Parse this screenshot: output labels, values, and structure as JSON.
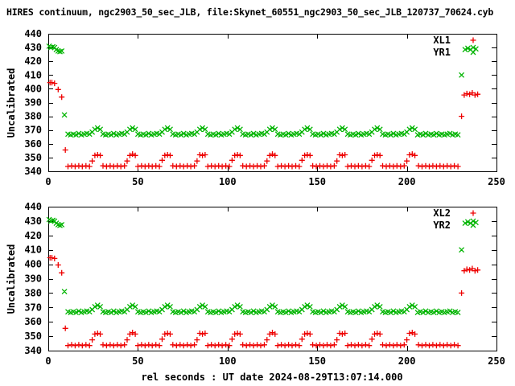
{
  "window": {
    "background": "#ffffff",
    "text_color": "#000000"
  },
  "chart_data": {
    "type": "scatter",
    "title": "HIRES continuum, ngc2903_50_sec_JLB, file:Skynet_60551_ngc2903_50_sec_JLB_120737_70624.cyb",
    "xlabel": "rel seconds : UT date 2024-08-29T13:07:14.000",
    "ylabel": "Uncalibrated",
    "xlim": [
      0,
      250
    ],
    "ylim": [
      340,
      440
    ],
    "xticks": [
      0,
      50,
      100,
      150,
      200,
      250
    ],
    "yticks": [
      340,
      350,
      360,
      370,
      380,
      390,
      400,
      410,
      420,
      430,
      440
    ],
    "grid": false,
    "legend_position": "top-right-inside",
    "frame_color": "#000000",
    "panels": [
      {
        "name": "top",
        "series": [
          {
            "label": "XL1",
            "marker": "plus",
            "color": "#ee0000",
            "points_key": "XL"
          },
          {
            "label": "YR1",
            "marker": "cross",
            "color": "#00b400",
            "points_key": "YR"
          }
        ]
      },
      {
        "name": "bottom",
        "series": [
          {
            "label": "XL2",
            "marker": "plus",
            "color": "#ee0000",
            "points_key": "XL"
          },
          {
            "label": "YR2",
            "marker": "cross",
            "color": "#00b400",
            "points_key": "YR"
          }
        ]
      }
    ],
    "points": {
      "XL": [
        [
          1,
          404.5
        ],
        [
          2,
          404.5
        ],
        [
          3.5,
          404
        ],
        [
          5.5,
          399.5
        ],
        [
          7.5,
          394
        ],
        [
          9.5,
          355.5
        ],
        [
          11,
          343.5
        ],
        [
          13,
          344
        ],
        [
          15,
          343.5
        ],
        [
          17,
          344
        ],
        [
          19,
          343.5
        ],
        [
          21,
          344
        ],
        [
          23,
          343.5
        ],
        [
          24.5,
          347.5
        ],
        [
          26,
          351.5
        ],
        [
          27.5,
          352
        ],
        [
          29,
          351.5
        ],
        [
          30.5,
          344
        ],
        [
          32.5,
          343.5
        ],
        [
          34.5,
          344
        ],
        [
          36.5,
          343.5
        ],
        [
          38.5,
          344
        ],
        [
          40.5,
          343.5
        ],
        [
          42.5,
          344
        ],
        [
          44,
          347.5
        ],
        [
          45.5,
          351.5
        ],
        [
          47,
          352.5
        ],
        [
          48.5,
          351.5
        ],
        [
          50,
          343.5
        ],
        [
          52,
          344
        ],
        [
          54,
          343.5
        ],
        [
          56,
          344
        ],
        [
          58,
          343.5
        ],
        [
          60,
          344
        ],
        [
          62,
          343.5
        ],
        [
          63.5,
          348
        ],
        [
          65,
          351.5
        ],
        [
          66.5,
          352
        ],
        [
          68,
          351.5
        ],
        [
          69.5,
          344
        ],
        [
          71.5,
          343.5
        ],
        [
          73.5,
          344
        ],
        [
          75.5,
          343.5
        ],
        [
          77.5,
          344
        ],
        [
          79.5,
          343.5
        ],
        [
          81.5,
          344
        ],
        [
          83,
          347.5
        ],
        [
          84.5,
          352
        ],
        [
          86,
          351.5
        ],
        [
          87.5,
          352
        ],
        [
          89,
          343.5
        ],
        [
          91,
          344
        ],
        [
          93,
          343.5
        ],
        [
          95,
          344
        ],
        [
          97,
          343.5
        ],
        [
          99,
          344
        ],
        [
          101,
          343.5
        ],
        [
          102.5,
          348
        ],
        [
          104,
          351.5
        ],
        [
          105.5,
          352
        ],
        [
          107,
          351.5
        ],
        [
          108.5,
          344
        ],
        [
          110.5,
          343.5
        ],
        [
          112.5,
          344
        ],
        [
          114.5,
          343.5
        ],
        [
          116.5,
          344
        ],
        [
          118.5,
          343.5
        ],
        [
          120.5,
          344
        ],
        [
          122,
          347.5
        ],
        [
          123.5,
          351.5
        ],
        [
          125,
          352.5
        ],
        [
          126.5,
          351.5
        ],
        [
          128,
          343.5
        ],
        [
          130,
          344
        ],
        [
          132,
          343.5
        ],
        [
          134,
          344
        ],
        [
          136,
          343.5
        ],
        [
          138,
          344
        ],
        [
          140,
          343.5
        ],
        [
          141.5,
          348
        ],
        [
          143,
          351.5
        ],
        [
          144.5,
          352
        ],
        [
          146,
          351.5
        ],
        [
          147.5,
          344
        ],
        [
          149.5,
          343.5
        ],
        [
          151.5,
          344
        ],
        [
          153.5,
          343.5
        ],
        [
          155.5,
          344
        ],
        [
          157.5,
          343.5
        ],
        [
          159.5,
          344
        ],
        [
          161,
          347.5
        ],
        [
          162.5,
          352
        ],
        [
          164,
          351.5
        ],
        [
          165.5,
          352
        ],
        [
          167,
          343.5
        ],
        [
          169,
          344
        ],
        [
          171,
          343.5
        ],
        [
          173,
          344
        ],
        [
          175,
          343.5
        ],
        [
          177,
          344
        ],
        [
          179,
          343.5
        ],
        [
          180.5,
          348
        ],
        [
          182,
          351.5
        ],
        [
          183.5,
          352
        ],
        [
          185,
          351.5
        ],
        [
          186.5,
          344
        ],
        [
          188.5,
          343.5
        ],
        [
          190.5,
          344
        ],
        [
          192.5,
          343.5
        ],
        [
          194.5,
          344
        ],
        [
          196.5,
          343.5
        ],
        [
          198.5,
          344
        ],
        [
          200,
          347.5
        ],
        [
          201.5,
          352
        ],
        [
          203,
          352.5
        ],
        [
          204.5,
          351.5
        ],
        [
          206.5,
          344
        ],
        [
          208.5,
          343.5
        ],
        [
          210.5,
          344
        ],
        [
          212.5,
          343.5
        ],
        [
          214.5,
          344
        ],
        [
          216.5,
          343.5
        ],
        [
          218.5,
          344
        ],
        [
          220.5,
          343.5
        ],
        [
          222.5,
          344
        ],
        [
          224.5,
          343.5
        ],
        [
          226.5,
          344
        ],
        [
          228.5,
          343.5
        ],
        [
          230.5,
          380
        ],
        [
          232,
          395.5
        ],
        [
          233.5,
          396.5
        ],
        [
          235,
          396
        ],
        [
          236.5,
          397
        ],
        [
          238,
          395.5
        ],
        [
          239.5,
          396
        ]
      ],
      "YR": [
        [
          0.5,
          431
        ],
        [
          1.5,
          430
        ],
        [
          2.5,
          430.5
        ],
        [
          3.5,
          430
        ],
        [
          4.5,
          428.5
        ],
        [
          5.5,
          427.5
        ],
        [
          6.5,
          427
        ],
        [
          7.5,
          427.5
        ],
        [
          9,
          381
        ],
        [
          11,
          367
        ],
        [
          12.5,
          366.5
        ],
        [
          14,
          367
        ],
        [
          15.5,
          366.5
        ],
        [
          17,
          367.5
        ],
        [
          18.5,
          366.5
        ],
        [
          20,
          367
        ],
        [
          21.5,
          367.5
        ],
        [
          23,
          367
        ],
        [
          24.5,
          368.5
        ],
        [
          26,
          370.5
        ],
        [
          27.5,
          371.5
        ],
        [
          29,
          370.5
        ],
        [
          30.5,
          367
        ],
        [
          32,
          366.5
        ],
        [
          33.5,
          367
        ],
        [
          35,
          366.5
        ],
        [
          36.5,
          367.5
        ],
        [
          38,
          366.5
        ],
        [
          39.5,
          367
        ],
        [
          41,
          367.5
        ],
        [
          42.5,
          367
        ],
        [
          44,
          368.5
        ],
        [
          45.5,
          370.5
        ],
        [
          47,
          371.5
        ],
        [
          48.5,
          370.5
        ],
        [
          50,
          367
        ],
        [
          51.5,
          366.5
        ],
        [
          53,
          367
        ],
        [
          54.5,
          366.5
        ],
        [
          56,
          367.5
        ],
        [
          57.5,
          366.5
        ],
        [
          59,
          367
        ],
        [
          60.5,
          367.5
        ],
        [
          62,
          367
        ],
        [
          63.5,
          368.5
        ],
        [
          65,
          370.5
        ],
        [
          66.5,
          371.5
        ],
        [
          68,
          370.5
        ],
        [
          69.5,
          367
        ],
        [
          71,
          366.5
        ],
        [
          72.5,
          367
        ],
        [
          74,
          366.5
        ],
        [
          75.5,
          367.5
        ],
        [
          77,
          366.5
        ],
        [
          78.5,
          367
        ],
        [
          80,
          367.5
        ],
        [
          81.5,
          367
        ],
        [
          83,
          368.5
        ],
        [
          84.5,
          370.5
        ],
        [
          86,
          371.5
        ],
        [
          87.5,
          370.5
        ],
        [
          89,
          367
        ],
        [
          90.5,
          366.5
        ],
        [
          92,
          367
        ],
        [
          93.5,
          366.5
        ],
        [
          95,
          367.5
        ],
        [
          96.5,
          366.5
        ],
        [
          98,
          367
        ],
        [
          99.5,
          367.5
        ],
        [
          101,
          367
        ],
        [
          102.5,
          368.5
        ],
        [
          104,
          370.5
        ],
        [
          105.5,
          371.5
        ],
        [
          107,
          370.5
        ],
        [
          108.5,
          367
        ],
        [
          110,
          366.5
        ],
        [
          111.5,
          367
        ],
        [
          113,
          366.5
        ],
        [
          114.5,
          367.5
        ],
        [
          116,
          366.5
        ],
        [
          117.5,
          367
        ],
        [
          119,
          367.5
        ],
        [
          120.5,
          367
        ],
        [
          122,
          368.5
        ],
        [
          123.5,
          370.5
        ],
        [
          125,
          371.5
        ],
        [
          126.5,
          370.5
        ],
        [
          128,
          367
        ],
        [
          129.5,
          366.5
        ],
        [
          131,
          367
        ],
        [
          132.5,
          366.5
        ],
        [
          134,
          367.5
        ],
        [
          135.5,
          366.5
        ],
        [
          137,
          367
        ],
        [
          138.5,
          367.5
        ],
        [
          140,
          367
        ],
        [
          141.5,
          368.5
        ],
        [
          143,
          370.5
        ],
        [
          144.5,
          371.5
        ],
        [
          146,
          370.5
        ],
        [
          147.5,
          367
        ],
        [
          149,
          366.5
        ],
        [
          150.5,
          367
        ],
        [
          152,
          366.5
        ],
        [
          153.5,
          367.5
        ],
        [
          155,
          366.5
        ],
        [
          156.5,
          367
        ],
        [
          158,
          367.5
        ],
        [
          159.5,
          367
        ],
        [
          161,
          368.5
        ],
        [
          162.5,
          370.5
        ],
        [
          164,
          371.5
        ],
        [
          165.5,
          370.5
        ],
        [
          167,
          367
        ],
        [
          168.5,
          366.5
        ],
        [
          170,
          367
        ],
        [
          171.5,
          366.5
        ],
        [
          173,
          367.5
        ],
        [
          174.5,
          366.5
        ],
        [
          176,
          367
        ],
        [
          177.5,
          367.5
        ],
        [
          179,
          367
        ],
        [
          180.5,
          368.5
        ],
        [
          182,
          370.5
        ],
        [
          183.5,
          371.5
        ],
        [
          185,
          370.5
        ],
        [
          186.5,
          367
        ],
        [
          188,
          366.5
        ],
        [
          189.5,
          367
        ],
        [
          191,
          366.5
        ],
        [
          192.5,
          367.5
        ],
        [
          194,
          366.5
        ],
        [
          195.5,
          367
        ],
        [
          197,
          367.5
        ],
        [
          198.5,
          367
        ],
        [
          200,
          368.5
        ],
        [
          201.5,
          370.5
        ],
        [
          203,
          371.5
        ],
        [
          204.5,
          370.5
        ],
        [
          206,
          366.5
        ],
        [
          207.5,
          367
        ],
        [
          209,
          366.5
        ],
        [
          210.5,
          367.5
        ],
        [
          212,
          366.5
        ],
        [
          213.5,
          367
        ],
        [
          215,
          366.5
        ],
        [
          216.5,
          367.5
        ],
        [
          218,
          366.5
        ],
        [
          219.5,
          367
        ],
        [
          221,
          366.5
        ],
        [
          222.5,
          367
        ],
        [
          224,
          367.5
        ],
        [
          225.5,
          366.5
        ],
        [
          227,
          367
        ],
        [
          228.5,
          366.5
        ],
        [
          230.5,
          410
        ],
        [
          232.5,
          428.5
        ],
        [
          234,
          429.5
        ],
        [
          235.5,
          428.5
        ],
        [
          237,
          430
        ],
        [
          238.5,
          429
        ]
      ]
    }
  }
}
